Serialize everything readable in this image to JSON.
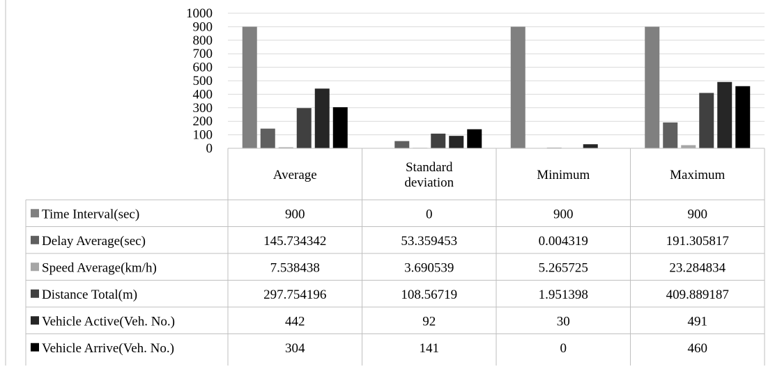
{
  "chart_data": {
    "type": "bar",
    "title": "",
    "xlabel": "",
    "ylabel": "",
    "ylim": [
      0,
      1000
    ],
    "y_ticks": [
      "1000",
      "900",
      "800",
      "700",
      "600",
      "500",
      "400",
      "300",
      "200",
      "100",
      "0"
    ],
    "grid": true,
    "legend": "table-left",
    "categories": [
      "Average",
      "Standard deviation",
      "Minimum",
      "Maximum"
    ],
    "category_labels": [
      [
        "Average"
      ],
      [
        "Standard",
        "deviation"
      ],
      [
        "Minimum"
      ],
      [
        "Maximum"
      ]
    ],
    "series": [
      {
        "name": "Time Interval(sec)",
        "color": "#808080",
        "values": [
          900,
          0,
          900,
          900
        ],
        "labels": [
          "900",
          "0",
          "900",
          "900"
        ]
      },
      {
        "name": "Delay Average(sec)",
        "color": "#5f5f5f",
        "values": [
          145.734342,
          53.359453,
          0.004319,
          191.305817
        ],
        "labels": [
          "145.734342",
          "53.359453",
          "0.004319",
          "191.305817"
        ]
      },
      {
        "name": "Speed Average(km/h)",
        "color": "#a6a6a6",
        "values": [
          7.538438,
          3.690539,
          5.265725,
          23.284834
        ],
        "labels": [
          "7.538438",
          "3.690539",
          "5.265725",
          "23.284834"
        ]
      },
      {
        "name": "Distance Total(m)",
        "color": "#404040",
        "values": [
          297.754196,
          108.56719,
          1.951398,
          409.889187
        ],
        "labels": [
          "297.754196",
          "108.56719",
          "1.951398",
          "409.889187"
        ]
      },
      {
        "name": "Vehicle Active(Veh. No.)",
        "color": "#262626",
        "values": [
          442,
          92,
          30,
          491
        ],
        "labels": [
          "442",
          "92",
          "30",
          "491"
        ]
      },
      {
        "name": "Vehicle Arrive(Veh. No.)",
        "color": "#000000",
        "values": [
          304,
          141,
          0,
          460
        ],
        "labels": [
          "304",
          "141",
          "0",
          "460"
        ]
      }
    ]
  }
}
